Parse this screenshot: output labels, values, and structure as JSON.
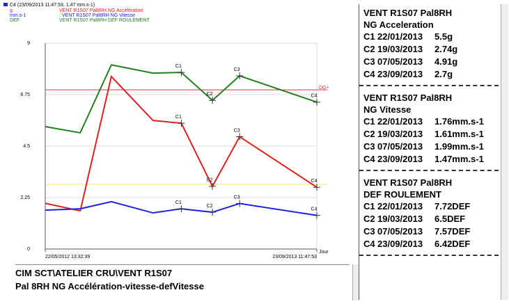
{
  "chart_data": {
    "type": "line",
    "legend_header": "C4 (23/09/2013 11:47:53, 1.47 mm.s-1)",
    "legend": [
      {
        "unit": "g",
        "text": "VENT R1S07 Pal8RH NG Accélération",
        "color": "#e02020"
      },
      {
        "unit": "mm.s-1",
        "text": ": VENT R1S07 Pal8RH NG Vitesse",
        "color": "#2020e0"
      },
      {
        "unit": "DEF",
        "text": "VENT R1S07 Pal8RH DEF ROULEMENT",
        "color": "#208020"
      }
    ],
    "x_label": "Jour",
    "x": [
      0,
      63,
      119,
      194,
      245,
      301,
      350,
      489
    ],
    "xlim": [
      0,
      489
    ],
    "xticks": [
      {
        "value": 0,
        "label": "22/05/2012 13:32:39"
      },
      {
        "value": 489,
        "label": "23/09/2013 11:47:53"
      }
    ],
    "ylim": [
      0,
      9
    ],
    "yticks": [
      0,
      2.25,
      4.5,
      6.75,
      9
    ],
    "series": [
      {
        "name": "DEF",
        "color": "#208020",
        "values": [
          5.35,
          5.08,
          8.05,
          7.69,
          7.72,
          6.5,
          7.57,
          6.42
        ],
        "point_labels": [
          null,
          null,
          null,
          null,
          "C1",
          "C2",
          "C3",
          "C4"
        ]
      },
      {
        "name": "g",
        "color": "#e02020",
        "values": [
          2.0,
          1.67,
          7.54,
          5.62,
          5.5,
          2.74,
          4.91,
          2.7
        ],
        "point_labels": [
          null,
          null,
          null,
          null,
          "C1",
          "C2",
          "C3",
          "C4"
        ]
      },
      {
        "name": "mm.s-1",
        "color": "#2020e0",
        "values": [
          1.7,
          1.76,
          2.07,
          1.58,
          1.76,
          1.61,
          1.99,
          1.47
        ],
        "point_labels": [
          null,
          null,
          null,
          null,
          "C1",
          "C2",
          "C3",
          "C4"
        ]
      }
    ],
    "thresholds": [
      {
        "value": 6.96,
        "color": "#e03030",
        "label": "DG+"
      },
      {
        "value": 2.83,
        "color": "#e8e870"
      }
    ]
  },
  "info": {
    "lines": [
      "CIM SCT\\ATELIER CRU\\VENT R1S07",
      "Pal  8RH  NG Accélération-vitesse-defVitesse"
    ]
  },
  "panel": {
    "sections": [
      {
        "title": [
          "VENT R1S07 Pal8RH",
          "NG Acceleration"
        ],
        "rows": [
          [
            "C1",
            "22/01/2013",
            "5.5g"
          ],
          [
            "C2",
            "19/03/2013",
            "2.74g"
          ],
          [
            "C3",
            "07/05/2013",
            "4.91g"
          ],
          [
            "C4",
            "23/09/2013",
            "2.7g"
          ]
        ]
      },
      {
        "title": [
          "VENT R1S07 Pal8RH",
          "NG Vitesse"
        ],
        "rows": [
          [
            "C1",
            "22/01/2013",
            "1.76mm.s-1"
          ],
          [
            "C2",
            "19/03/2013",
            "1.61mm.s-1"
          ],
          [
            "C3",
            "07/05/2013",
            "1.99mm.s-1"
          ],
          [
            "C4",
            "23/09/2013",
            "1.47mm.s-1"
          ]
        ]
      },
      {
        "title": [
          "VENT R1S07 Pal8RH",
          "DEF ROULEMENT"
        ],
        "rows": [
          [
            "C1",
            "22/01/2013",
            "7.72DEF"
          ],
          [
            "C2",
            "19/03/2013",
            "6.5DEF"
          ],
          [
            "C3",
            "07/05/2013",
            "7.57DEF"
          ],
          [
            "C4",
            "23/09/2013",
            "6.42DEF"
          ]
        ]
      }
    ]
  }
}
